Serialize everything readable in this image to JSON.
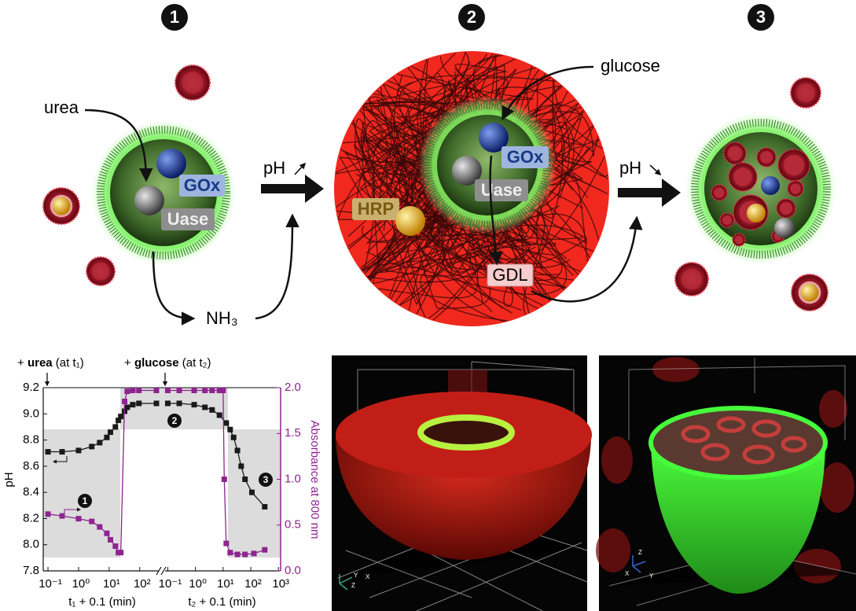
{
  "diagram": {
    "steps": [
      "1",
      "2",
      "3"
    ],
    "labels": [
      "urea",
      "GOx",
      "Uase",
      "NH₃",
      "pH",
      "glucose",
      "GOx",
      "Uase",
      "HRP",
      "GDL",
      "pH"
    ]
  },
  "chart_data": [
    {
      "type": "line",
      "xlabel": "t₁ + 0.1 (min)",
      "ylabel": "pH",
      "xscale": "log",
      "xlim": [
        0.07,
        500
      ],
      "xticks": [
        {
          "value": 0.1,
          "label": "10⁻¹"
        },
        {
          "value": 1,
          "label": "10⁰"
        },
        {
          "value": 10,
          "label": "10¹"
        },
        {
          "value": 100,
          "label": "10²"
        }
      ],
      "ylim": [
        7.8,
        9.2
      ],
      "yticks": [
        7.8,
        {
          "value": 8,
          "label": "8.0"
        },
        8.2,
        8.4,
        8.6,
        8.8,
        {
          "value": 9,
          "label": "9.0"
        },
        9.2
      ],
      "y2lim": [
        0,
        2
      ],
      "annotations": [
        {
          "parts": [
            "+ ",
            "urea",
            " (at t₁)"
          ]
        },
        {
          "parts": [
            "+ ",
            "glucose",
            " (at t₂)"
          ]
        }
      ],
      "region_labels": [
        "1",
        "2",
        "3"
      ],
      "series": [
        {
          "color": "#1a1a1a",
          "x": [
            0.1,
            0.29,
            1,
            2.7,
            4.9,
            8.4,
            11,
            16,
            20,
            24,
            32,
            39,
            59,
            94,
            350
          ],
          "values": [
            8.71,
            8.71,
            8.72,
            8.75,
            8.78,
            8.82,
            8.86,
            8.9,
            8.95,
            8.98,
            9.02,
            9.05,
            9.07,
            9.08,
            9.08
          ]
        },
        {
          "color": "#8e2490",
          "axis": "y2",
          "x": [
            0.1,
            0.29,
            1,
            2.7,
            4.9,
            8.4,
            11,
            16,
            20,
            24,
            32,
            39,
            59,
            94,
            350
          ],
          "values": [
            0.62,
            0.6,
            0.57,
            0.54,
            0.48,
            0.41,
            0.34,
            0.27,
            0.2,
            0.2,
            1.85,
            1.96,
            1.97,
            1.97,
            1.97
          ]
        }
      ]
    },
    {
      "type": "line",
      "xlabel": "t₂ + 0.1 (min)",
      "y2label": "Absorbance at 800 nm",
      "xscale": "log",
      "xlim": [
        0.07,
        1200
      ],
      "xticks": [
        {
          "value": 0.1,
          "label": "10⁻¹"
        },
        {
          "value": 1,
          "label": "10⁰"
        },
        {
          "value": 10,
          "label": "10¹"
        },
        {
          "value": 100,
          "label": "10²"
        },
        {
          "value": 1000,
          "label": "10³"
        }
      ],
      "ylim": [
        7.8,
        9.2
      ],
      "y2lim": [
        0,
        2
      ],
      "y2ticks": [
        {
          "value": 0,
          "label": "0.0"
        },
        0.5,
        {
          "value": 1,
          "label": "1.0"
        },
        1.5,
        {
          "value": 2,
          "label": "2.0"
        }
      ],
      "series": [
        {
          "color": "#1a1a1a",
          "x": [
            0.1,
            0.26,
            0.9,
            2.2,
            4,
            7.4,
            13,
            18,
            24,
            33,
            45,
            62,
            110,
            320
          ],
          "values": [
            9.08,
            9.08,
            9.07,
            9.05,
            9.03,
            8.99,
            8.93,
            8.88,
            8.82,
            8.72,
            8.6,
            8.5,
            8.4,
            8.29
          ]
        },
        {
          "color": "#8e2490",
          "axis": "y2",
          "x": [
            0.1,
            0.26,
            0.9,
            2.2,
            4,
            7.4,
            10,
            11,
            13,
            18,
            33,
            62,
            130,
            320
          ],
          "values": [
            1.97,
            1.97,
            1.97,
            1.97,
            1.97,
            1.97,
            1.97,
            1.0,
            0.3,
            0.2,
            0.18,
            0.18,
            0.19,
            0.23
          ]
        }
      ]
    }
  ],
  "microscopy": [
    {
      "axes": [
        "Y",
        "Z",
        "X"
      ]
    },
    {
      "axes": [
        "Z",
        "X",
        "Y"
      ]
    }
  ]
}
